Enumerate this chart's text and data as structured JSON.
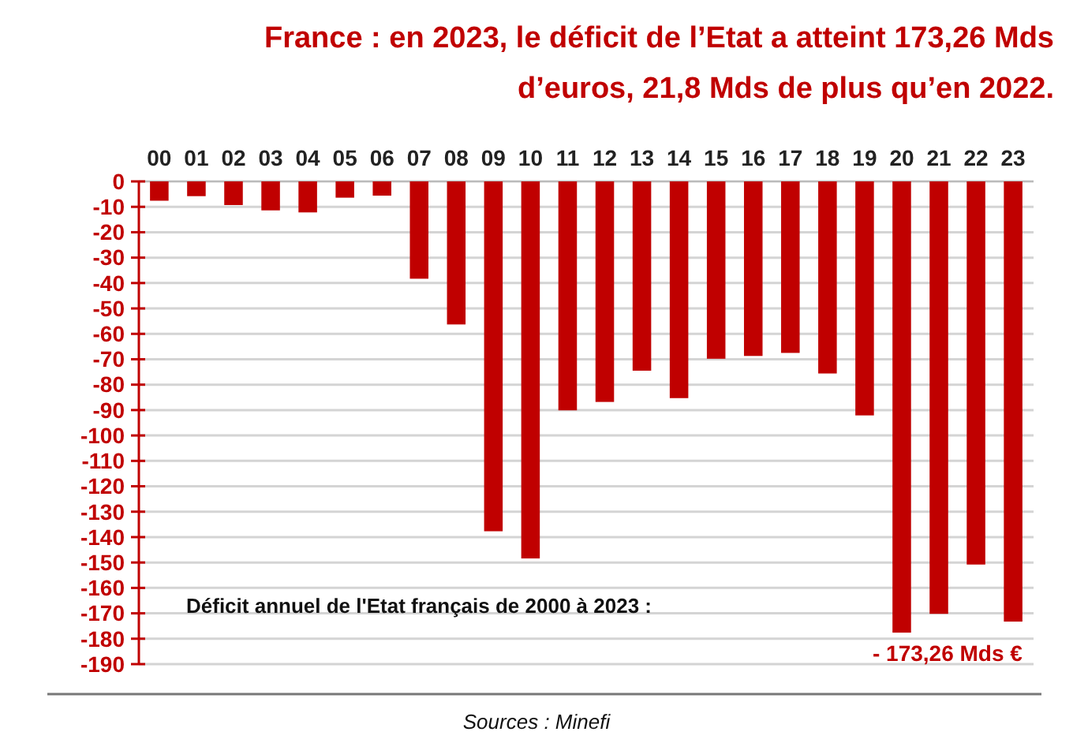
{
  "chart_data": {
    "type": "bar",
    "title": "France : en 2023, le déficit de l’Etat a atteint 173,26 Mds d’euros, 21,8 Mds de plus qu’en 2022.",
    "categories": [
      "00",
      "01",
      "02",
      "03",
      "04",
      "05",
      "06",
      "07",
      "08",
      "09",
      "10",
      "11",
      "12",
      "13",
      "14",
      "15",
      "16",
      "17",
      "18",
      "19",
      "20",
      "21",
      "22",
      "23"
    ],
    "values": [
      -7.6,
      -5.8,
      -9.3,
      -11.4,
      -12.2,
      -6.4,
      -5.6,
      -38.3,
      -56.3,
      -137.7,
      -148.4,
      -90.1,
      -86.8,
      -74.5,
      -85.3,
      -69.8,
      -68.7,
      -67.5,
      -75.6,
      -92.1,
      -177.6,
      -170.2,
      -150.8,
      -173.26
    ],
    "color": "#c00000",
    "ylim": [
      -190,
      0
    ],
    "yticks": [
      0,
      -10,
      -20,
      -30,
      -40,
      -50,
      -60,
      -70,
      -80,
      -90,
      -100,
      -110,
      -120,
      -130,
      -140,
      -150,
      -160,
      -170,
      -180,
      -190
    ],
    "grid": "y",
    "annotations": [
      "Déficit annuel de l'Etat français de 2000 à 2023 :",
      {
        "text": "- 173,26 Mds €",
        "x": "23",
        "y": -173.26
      },
      "Sources : Minefi"
    ]
  }
}
